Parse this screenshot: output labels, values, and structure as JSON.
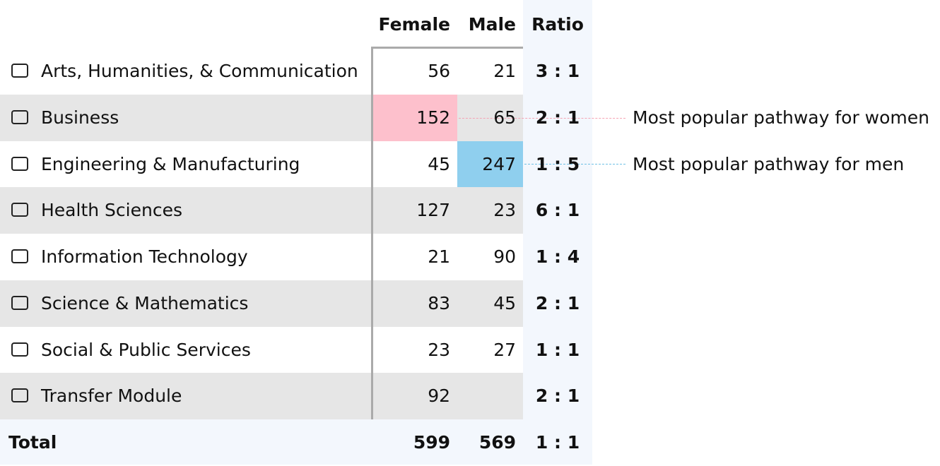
{
  "table": {
    "header": [
      "Female",
      "Male",
      "Ratio"
    ],
    "rows": [
      [
        "Arts, Humanities, & Communication",
        56,
        21,
        "3 : 1"
      ],
      [
        "Business",
        152,
        65,
        "2 : 1"
      ],
      [
        "Engineering & Manufacturing",
        45,
        247,
        "1 : 5"
      ],
      [
        "Health Sciences",
        127,
        23,
        "6 : 1"
      ],
      [
        "Information Technology",
        21,
        90,
        "1 : 4"
      ],
      [
        "Science & Mathematics",
        83,
        45,
        "2 : 1"
      ],
      [
        "Social & Public Services",
        23,
        27,
        "1 : 1"
      ],
      [
        "Transfer Module",
        92,
        null,
        "2 : 1"
      ]
    ],
    "total": [
      "Total",
      599,
      569,
      "1 : 1"
    ]
  },
  "annotations": [
    {
      "row": 1,
      "column": 1,
      "color": "#fdc0cc",
      "line_color": "#f5a3b4",
      "text": "Most popular pathway for women"
    },
    {
      "row": 2,
      "column": 2,
      "color": "#8fcfee",
      "line_color": "#6fc0e6",
      "text": "Most popular pathway for men"
    }
  ]
}
